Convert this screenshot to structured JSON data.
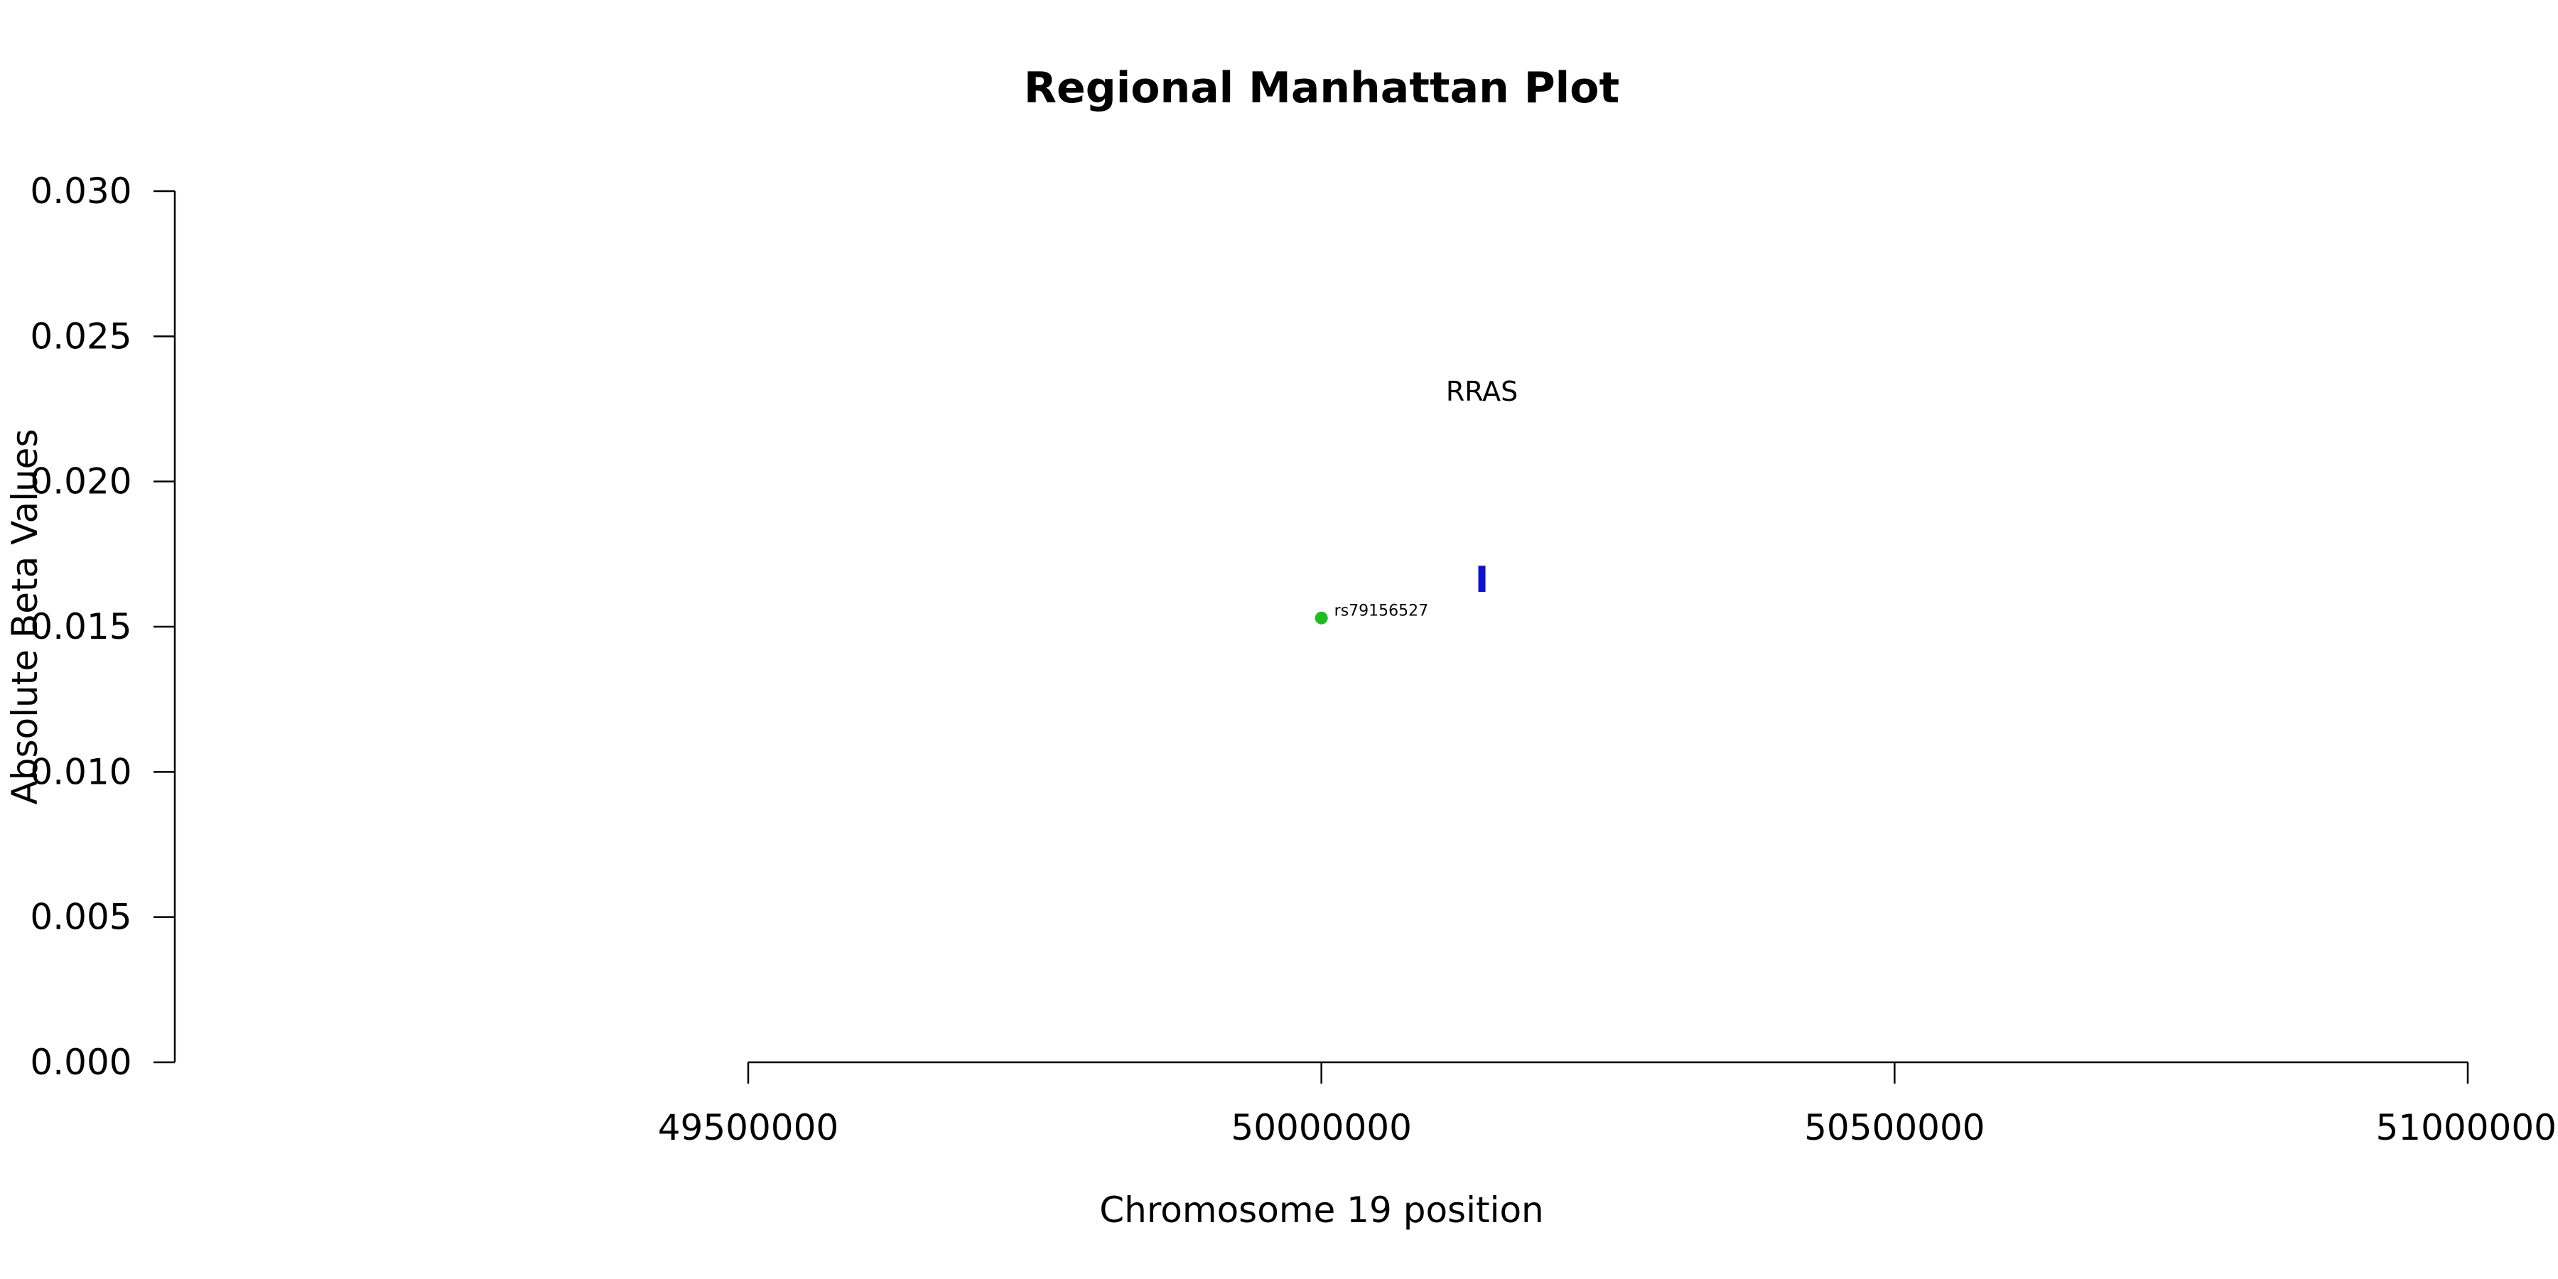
{
  "chart_data": {
    "type": "scatter",
    "title": "Regional Manhattan Plot",
    "xlabel": "Chromosome 19 position",
    "ylabel": "Absolute Beta Values",
    "xlim": [
      49500000,
      51000000
    ],
    "ylim": [
      0,
      0.03
    ],
    "x_ticks": [
      49500000,
      50000000,
      50500000,
      51000000
    ],
    "y_ticks": [
      0.0,
      0.005,
      0.01,
      0.015,
      0.02,
      0.025,
      0.03
    ],
    "x_tick_labels": [
      "49500000",
      "50000000",
      "50500000",
      "51000000"
    ],
    "y_tick_labels": [
      "0.000",
      "0.005",
      "0.010",
      "0.015",
      "0.020",
      "0.025",
      "0.030"
    ],
    "grid": false,
    "points": [
      {
        "label": "rs79156527",
        "x": 50000000,
        "y": 0.0153,
        "color": "#22bb22"
      }
    ],
    "genes": [
      {
        "name": "RRAS",
        "x": 50140000,
        "y_low": 0.0162,
        "y_high": 0.0171,
        "label_y": 0.0231,
        "color": "#1010d0"
      }
    ]
  }
}
